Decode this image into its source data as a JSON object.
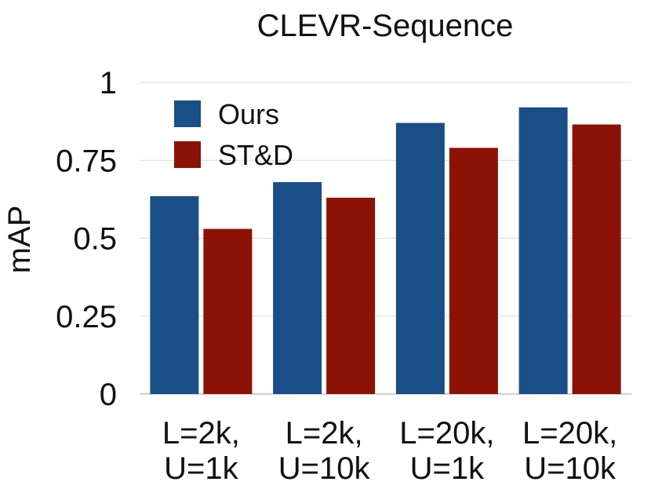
{
  "chart_data": {
    "type": "bar",
    "title": "CLEVR-Sequence",
    "xlabel": "",
    "ylabel": "mAP",
    "ylim": [
      0,
      1
    ],
    "yticks": [
      0,
      0.25,
      0.5,
      0.75,
      1
    ],
    "ytick_labels": [
      "0",
      "0.25",
      "0.5",
      "0.75",
      "1"
    ],
    "grid": true,
    "legend_position": "top-left",
    "categories": [
      [
        "L=2k,",
        "U=1k"
      ],
      [
        "L=2k,",
        "U=10k"
      ],
      [
        "L=20k,",
        "U=1k"
      ],
      [
        "L=20k,",
        "U=10k"
      ]
    ],
    "series": [
      {
        "name": "Ours",
        "color": "#1a4e86",
        "values": [
          0.635,
          0.68,
          0.87,
          0.92
        ]
      },
      {
        "name": "ST&D",
        "color": "#8b1205",
        "values": [
          0.53,
          0.63,
          0.79,
          0.865
        ]
      }
    ]
  }
}
